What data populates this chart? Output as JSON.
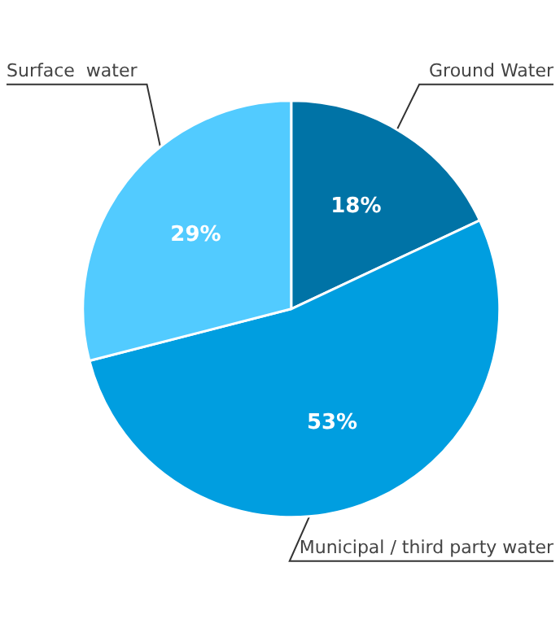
{
  "chart_data": {
    "type": "pie",
    "categories": [
      "Ground Water",
      "Municipal / third party water",
      "Surface  water"
    ],
    "values": [
      18,
      53,
      29
    ],
    "colors": [
      "#0073a6",
      "#009ee0",
      "#52cbff"
    ],
    "value_labels": [
      "18%",
      "53%",
      "29%"
    ],
    "legend": false
  }
}
